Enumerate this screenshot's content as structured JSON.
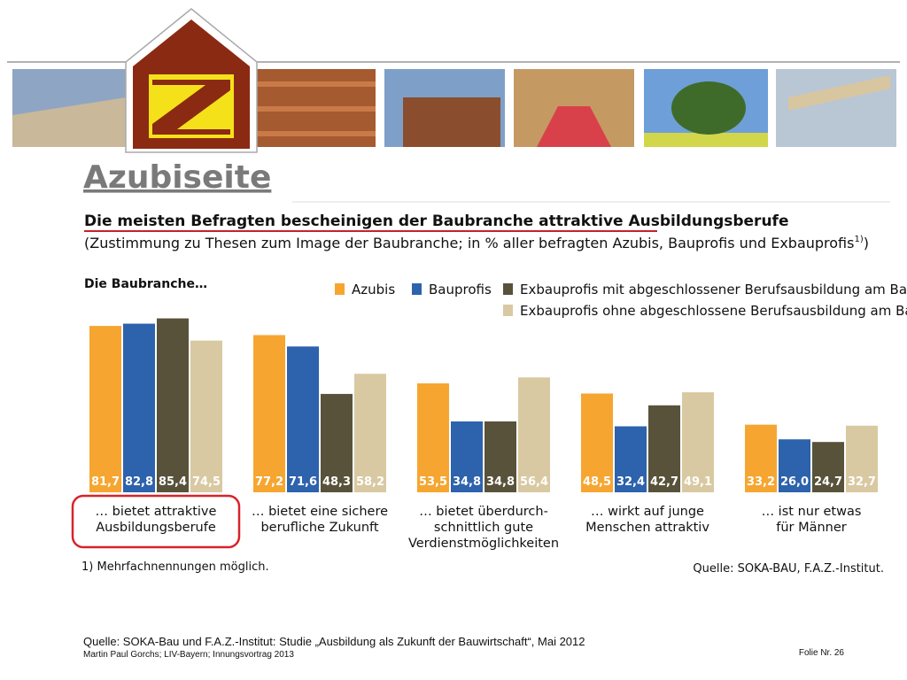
{
  "page": {
    "heading": "Azubiseite",
    "footer_source": "Quelle: SOKA-Bau und F.A.Z.-Institut: Studie „Ausbildung als Zukunft der Bauwirtschaft“, Mai 2012",
    "footer_author": "Martin Paul Gorchs; LIV-Bayern; Innungsvortrag 2013",
    "slide_number": "Folie Nr. 26"
  },
  "chart_data": {
    "type": "bar",
    "title": "Die meisten Befragten bescheinigen der Baubranche attraktive Ausbildungsberufe",
    "subtitle": "(Zustimmung zu Thesen zum Image der Baubranche; in % aller befragten Azubis, Bauprofis und Exbauprofis",
    "subtitle_note": "1)",
    "subtitle_end": ")",
    "chart_label": "Die Baubranche…",
    "footnote": "1) Mehrfachnennungen möglich.",
    "source": "Quelle: SOKA-BAU, F.A.Z.-Institut.",
    "categories": [
      "… bietet attraktive\nAusbildungsberufe",
      "… bietet eine sichere\nberufliche Zukunft",
      "… bietet überdurch-\nschnittlich gute\nVerdienstmöglichkeiten",
      "… wirkt auf junge\nMenschen attraktiv",
      "… ist nur etwas\nfür Männer"
    ],
    "ylim": [
      0,
      100
    ],
    "series": [
      {
        "name": "Azubis",
        "color": "#f6a630",
        "values": [
          81.7,
          77.2,
          53.5,
          48.5,
          33.2
        ],
        "value_labels": [
          "81,7",
          "77,2",
          "53,5",
          "48,5",
          "33,2"
        ]
      },
      {
        "name": "Bauprofis",
        "color": "#2d62ac",
        "values": [
          82.8,
          71.6,
          34.8,
          32.4,
          26.0
        ],
        "value_labels": [
          "82,8",
          "71,6",
          "34,8",
          "32,4",
          "26,0"
        ]
      },
      {
        "name": "Exbauprofis mit abgeschlossener Berufsausbildung am Bau",
        "color": "#58523a",
        "values": [
          85.4,
          48.3,
          34.8,
          42.7,
          24.7
        ],
        "value_labels": [
          "85,4",
          "48,3",
          "34,8",
          "42,7",
          "24,7"
        ]
      },
      {
        "name": "Exbauprofis ohne abgeschlossene Berufsausbildung am Bau",
        "color": "#d9c9a2",
        "values": [
          74.5,
          58.2,
          56.4,
          49.1,
          32.7
        ],
        "value_labels": [
          "74,5",
          "58,2",
          "56,4",
          "49,1",
          "32,7"
        ]
      }
    ]
  }
}
